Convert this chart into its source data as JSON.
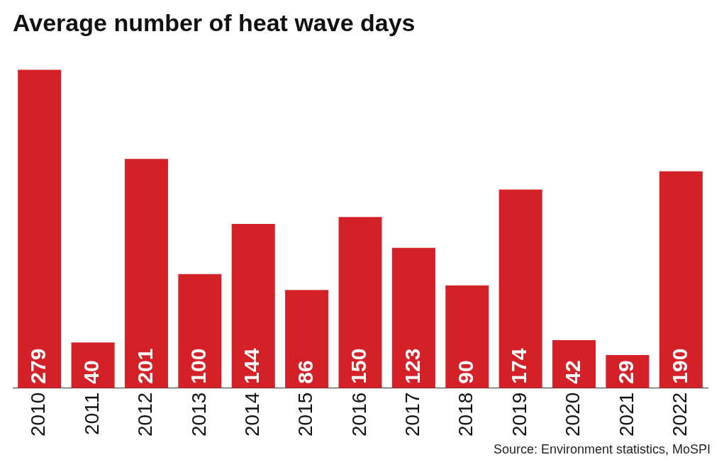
{
  "chart_data": {
    "type": "bar",
    "title": "Average number of heat wave days",
    "categories": [
      "2010",
      "2011",
      "2012",
      "2013",
      "2014",
      "2015",
      "2016",
      "2017",
      "2018",
      "2019",
      "2020",
      "2021",
      "2022"
    ],
    "values": [
      279,
      40,
      201,
      100,
      144,
      86,
      150,
      123,
      90,
      174,
      42,
      29,
      190
    ],
    "color": "#d42027",
    "data_labels": true,
    "grid": false,
    "legend": false,
    "annotations": [
      "Source: Environment statistics, MoSPI"
    ]
  }
}
